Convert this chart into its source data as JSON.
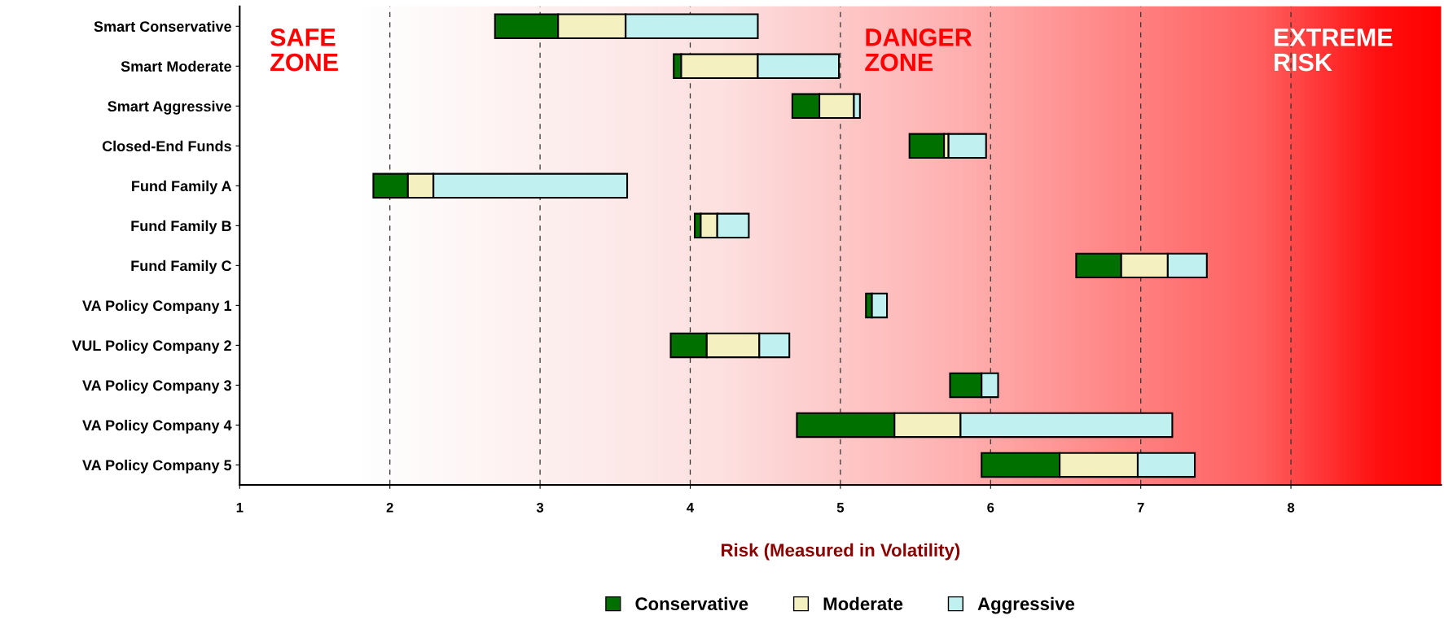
{
  "chart_data": {
    "type": "bar",
    "orientation": "horizontal",
    "categories": [
      "Smart Conservative",
      "Smart Moderate",
      "Smart Aggressive",
      "Closed-End Funds",
      "Fund Family A",
      "Fund Family B",
      "Fund Family C",
      "VA Policy Company 1",
      "VUL Policy Company 2",
      "VA Policy Company 3",
      "VA Policy Company 4",
      "VA Policy Company 5"
    ],
    "series": [
      {
        "name": "Conservative",
        "color": "#007000",
        "base": [
          2.7,
          3.89,
          4.68,
          5.46,
          1.89,
          4.03,
          6.57,
          5.17,
          3.87,
          5.73,
          4.71,
          5.94
        ],
        "values": [
          0.42,
          0.05,
          0.18,
          0.23,
          0.23,
          0.04,
          0.3,
          0.04,
          0.24,
          0.21,
          0.65,
          0.52
        ]
      },
      {
        "name": "Moderate",
        "color": "#f5f0c0",
        "base": [
          3.12,
          3.94,
          4.86,
          5.69,
          2.12,
          4.07,
          6.87,
          null,
          4.11,
          null,
          5.36,
          6.46
        ],
        "values": [
          0.45,
          0.51,
          0.23,
          0.03,
          0.17,
          0.11,
          0.31,
          null,
          0.35,
          null,
          0.44,
          0.52
        ]
      },
      {
        "name": "Aggressive",
        "color": "#c0f0f0",
        "base": [
          3.57,
          4.45,
          5.09,
          5.72,
          2.29,
          4.18,
          7.18,
          5.21,
          4.46,
          5.94,
          5.8,
          6.98
        ],
        "values": [
          0.88,
          0.54,
          0.04,
          0.25,
          1.29,
          0.21,
          0.26,
          0.1,
          0.2,
          0.11,
          1.41,
          0.38
        ]
      }
    ],
    "xlim": [
      1,
      9
    ],
    "xticks": [
      1,
      2,
      3,
      4,
      5,
      6,
      7,
      8
    ],
    "xlabel": "Risk (Measured in Volatility)",
    "annotations": [
      "SAFE\nZONE",
      "DANGER\nZONE",
      "EXTREME\nRISK"
    ],
    "grid": "x",
    "legend": "bottom"
  }
}
